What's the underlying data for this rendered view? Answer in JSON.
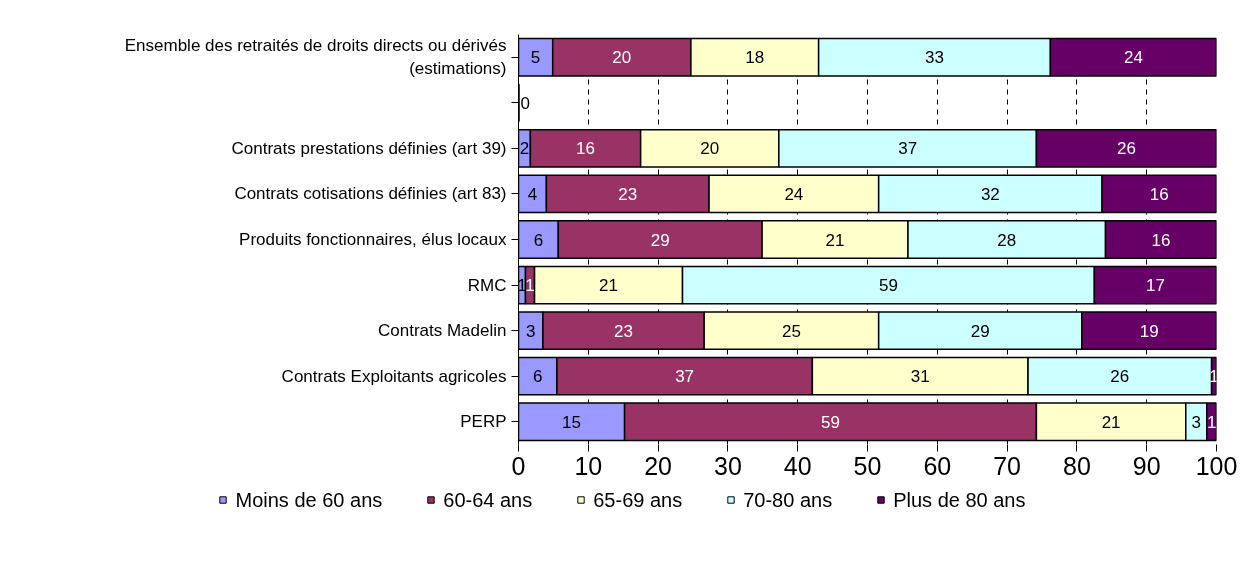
{
  "chart_data": {
    "type": "bar",
    "orientation": "horizontal",
    "stacked": true,
    "categories": [
      "Ensemble des retraités de droits directs ou dérivés\n(estimations)",
      null,
      "Contrats prestations définies (art 39)",
      "Contrats cotisations définies (art 83)",
      "Produits fonctionnaires, élus locaux",
      "RMC",
      "Contrats Madelin",
      "Contrats Exploitants agricoles",
      "PERP"
    ],
    "series": [
      {
        "name": "Moins de 60 ans",
        "color": "#9999ff",
        "values": [
          4.9,
          0,
          1.7,
          4,
          5.7,
          1,
          3.5,
          5.5,
          15.2
        ],
        "value_labels": [
          "5",
          "0",
          "2",
          "4",
          "6",
          "1",
          "3",
          "6",
          "15"
        ]
      },
      {
        "name": "60-64 ans",
        "color": "#993366",
        "values": [
          19.8,
          0,
          15.8,
          23.3,
          29.2,
          1.3,
          23.1,
          36.6,
          59
        ],
        "value_labels": [
          "20",
          null,
          "16",
          "23",
          "29",
          "1",
          "23",
          "37",
          "59"
        ]
      },
      {
        "name": "65-69 ans",
        "color": "#ffffcc",
        "values": [
          18.3,
          0,
          19.8,
          24.3,
          20.9,
          21.2,
          25,
          30.9,
          21.4
        ],
        "value_labels": [
          "18",
          null,
          "20",
          "24",
          "21",
          "21",
          "25",
          "31",
          "21"
        ]
      },
      {
        "name": "70-80 ans",
        "color": "#ccffff",
        "values": [
          33.2,
          0,
          36.9,
          32,
          28.3,
          59,
          29.1,
          26.3,
          3
        ],
        "value_labels": [
          "33",
          null,
          "37",
          "32",
          "28",
          "59",
          "29",
          "26",
          "3"
        ]
      },
      {
        "name": "Plus de 80 ans",
        "color": "#660066",
        "values": [
          23.8,
          0,
          25.8,
          16.4,
          15.9,
          17.5,
          19.3,
          0.7,
          1.4
        ],
        "value_labels": [
          "24",
          null,
          "26",
          "16",
          "16",
          "17",
          "19",
          "1",
          "1"
        ]
      }
    ],
    "xlim": [
      0,
      100
    ],
    "xticks": [
      0,
      10,
      20,
      30,
      40,
      50,
      60,
      70,
      80,
      90,
      100
    ],
    "grid": "x",
    "legend": "bottom"
  }
}
